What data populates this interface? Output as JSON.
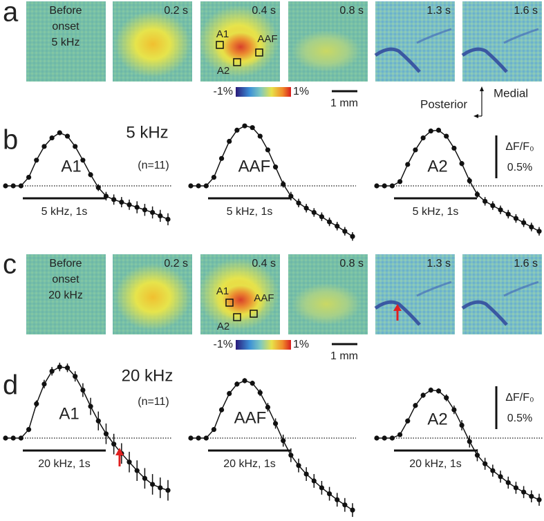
{
  "panels": [
    {
      "letter": "a",
      "frames": [
        {
          "label": [
            "Before",
            "onset",
            "5 kHz"
          ]
        },
        {
          "label": "0.2 s"
        },
        {
          "label": "0.4 s"
        },
        {
          "label": "0.8 s"
        },
        {
          "label": "1.3 s"
        },
        {
          "label": "1.6 s"
        }
      ],
      "rois": [
        "A1",
        "A2",
        "AAF"
      ],
      "colorbar": [
        "-1%",
        "1%"
      ],
      "scalebar": "1 mm",
      "orientation": [
        "Posterior",
        "Medial"
      ]
    },
    {
      "letter": "b",
      "title": "5 kHz",
      "n": "(n=11)",
      "traces": [
        {
          "name": "A1",
          "stimulus": "5 kHz, 1s",
          "values": [
            0,
            0,
            0,
            0.1,
            0.3,
            0.46,
            0.56,
            0.62,
            0.58,
            0.46,
            0.3,
            0.13,
            -0.02,
            -0.12,
            -0.16,
            -0.19,
            -0.22,
            -0.25,
            -0.28,
            -0.31,
            -0.35,
            -0.39
          ],
          "errors": [
            0.01,
            0.01,
            0.01,
            0.02,
            0.02,
            0.02,
            0.02,
            0.02,
            0.02,
            0.02,
            0.02,
            0.03,
            0.04,
            0.05,
            0.06,
            0.06,
            0.06,
            0.07,
            0.07,
            0.07,
            0.07,
            0.07
          ]
        },
        {
          "name": "AAF",
          "stimulus": "5 kHz, 1s",
          "values": [
            0,
            0,
            0,
            0.1,
            0.32,
            0.52,
            0.65,
            0.7,
            0.68,
            0.58,
            0.42,
            0.22,
            0.02,
            -0.12,
            -0.2,
            -0.26,
            -0.31,
            -0.36,
            -0.42,
            -0.47,
            -0.53,
            -0.59
          ],
          "errors": [
            0.01,
            0.01,
            0.01,
            0.02,
            0.02,
            0.02,
            0.02,
            0.02,
            0.02,
            0.02,
            0.02,
            0.03,
            0.04,
            0.05,
            0.05,
            0.05,
            0.05,
            0.05,
            0.05,
            0.05,
            0.05,
            0.05
          ]
        },
        {
          "name": "A2",
          "stimulus": "5 kHz, 1s",
          "values": [
            0,
            0,
            0,
            0.05,
            0.25,
            0.42,
            0.56,
            0.64,
            0.65,
            0.58,
            0.44,
            0.26,
            0.06,
            -0.1,
            -0.18,
            -0.23,
            -0.28,
            -0.33,
            -0.38,
            -0.43,
            -0.48,
            -0.53
          ],
          "errors": [
            0.01,
            0.01,
            0.01,
            0.02,
            0.02,
            0.02,
            0.02,
            0.02,
            0.02,
            0.02,
            0.02,
            0.03,
            0.04,
            0.04,
            0.05,
            0.05,
            0.05,
            0.05,
            0.05,
            0.05,
            0.05,
            0.05
          ]
        }
      ],
      "dff_scalebar": {
        "title": "ΔF/F₀",
        "value": 0.5,
        "label": "0.5%"
      }
    },
    {
      "letter": "c",
      "frames": [
        {
          "label": [
            "Before",
            "onset",
            "20 kHz"
          ]
        },
        {
          "label": "0.2 s"
        },
        {
          "label": "0.4 s"
        },
        {
          "label": "0.8 s"
        },
        {
          "label": "1.3 s"
        },
        {
          "label": "1.6 s"
        }
      ],
      "rois": [
        "A1",
        "A2",
        "AAF"
      ],
      "colorbar": [
        "-1%",
        "1%"
      ],
      "scalebar": "1 mm"
    },
    {
      "letter": "d",
      "title": "20 kHz",
      "n": "(n=11)",
      "traces": [
        {
          "name": "A1",
          "stimulus": "20 kHz, 1s",
          "values": [
            0,
            0,
            0,
            0.1,
            0.4,
            0.63,
            0.78,
            0.83,
            0.82,
            0.72,
            0.56,
            0.37,
            0.2,
            0.05,
            -0.07,
            -0.18,
            -0.28,
            -0.38,
            -0.47,
            -0.54,
            -0.58,
            -0.61
          ],
          "errors": [
            0.01,
            0.01,
            0.01,
            0.03,
            0.04,
            0.05,
            0.05,
            0.05,
            0.05,
            0.06,
            0.08,
            0.1,
            0.11,
            0.12,
            0.12,
            0.12,
            0.12,
            0.12,
            0.12,
            0.12,
            0.12,
            0.12
          ]
        },
        {
          "name": "AAF",
          "stimulus": "20 kHz, 1s",
          "values": [
            0,
            0,
            0,
            0.1,
            0.33,
            0.52,
            0.63,
            0.67,
            0.64,
            0.53,
            0.36,
            0.17,
            -0.03,
            -0.2,
            -0.32,
            -0.42,
            -0.5,
            -0.58,
            -0.65,
            -0.72,
            -0.78,
            -0.84
          ],
          "errors": [
            0.01,
            0.01,
            0.01,
            0.02,
            0.03,
            0.03,
            0.03,
            0.03,
            0.03,
            0.04,
            0.05,
            0.06,
            0.07,
            0.08,
            0.08,
            0.08,
            0.08,
            0.08,
            0.08,
            0.08,
            0.08,
            0.08
          ]
        },
        {
          "name": "A2",
          "stimulus": "20 kHz, 1s",
          "values": [
            0,
            0,
            0,
            0.04,
            0.2,
            0.38,
            0.5,
            0.56,
            0.55,
            0.47,
            0.33,
            0.15,
            -0.04,
            -0.2,
            -0.3,
            -0.38,
            -0.45,
            -0.52,
            -0.58,
            -0.63,
            -0.68,
            -0.72
          ],
          "errors": [
            0.01,
            0.01,
            0.01,
            0.02,
            0.03,
            0.03,
            0.03,
            0.03,
            0.03,
            0.04,
            0.05,
            0.06,
            0.07,
            0.07,
            0.07,
            0.07,
            0.07,
            0.07,
            0.07,
            0.07,
            0.07,
            0.07
          ]
        }
      ],
      "dff_scalebar": {
        "title": "ΔF/F₀",
        "value": 0.5,
        "label": "0.5%"
      }
    }
  ]
}
